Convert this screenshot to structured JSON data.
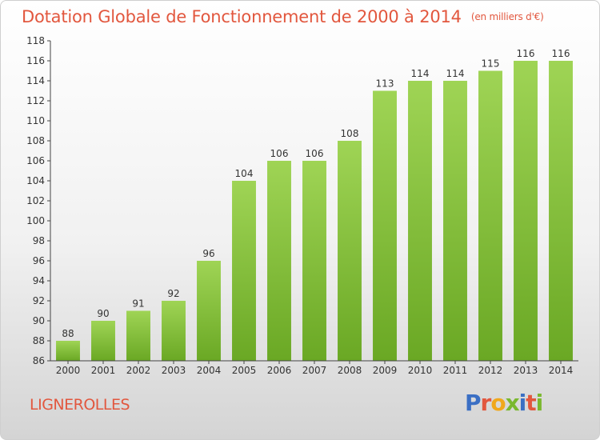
{
  "header": {
    "title": "Dotation Globale de Fonctionnement de 2000 à 2014",
    "unit_note": "(en milliers d'€)"
  },
  "footer": {
    "commune": "LIGNEROLLES",
    "logo_letters": [
      "P",
      "r",
      "o",
      "x",
      "i",
      "t",
      "i"
    ],
    "logo_colors": [
      "#3a6fc4",
      "#e2573e",
      "#f0a81c",
      "#7ab82e",
      "#3a6fc4",
      "#e2573e",
      "#7ab82e"
    ]
  },
  "chart_data": {
    "type": "bar",
    "title": "Dotation Globale de Fonctionnement de 2000 à 2014",
    "categories": [
      "2000",
      "2001",
      "2002",
      "2003",
      "2004",
      "2005",
      "2006",
      "2007",
      "2008",
      "2009",
      "2010",
      "2011",
      "2012",
      "2013",
      "2014"
    ],
    "values": [
      88,
      90,
      91,
      92,
      96,
      104,
      106,
      106,
      108,
      113,
      114,
      114,
      115,
      116,
      116
    ],
    "ylim": [
      86,
      118
    ],
    "yticks": [
      86,
      88,
      90,
      92,
      94,
      96,
      98,
      100,
      102,
      104,
      106,
      108,
      110,
      112,
      114,
      116,
      118
    ],
    "grid": false,
    "bar_color": "#8cc63f"
  }
}
